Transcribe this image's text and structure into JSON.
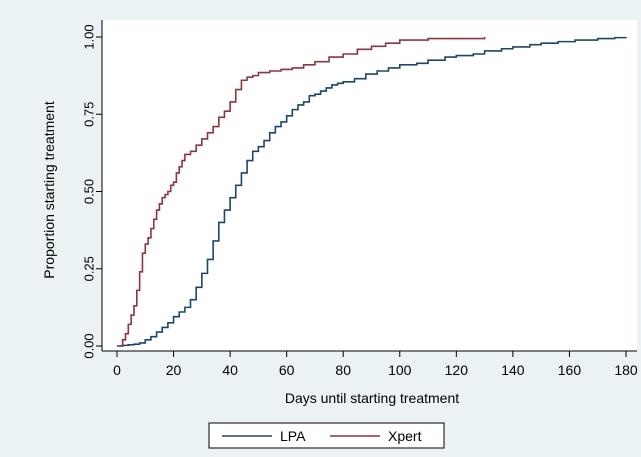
{
  "chart_data": {
    "type": "line",
    "title": "",
    "xlabel": "Days until starting treatment",
    "ylabel": "Proportion starting treatment",
    "xlim": [
      0,
      180
    ],
    "ylim": [
      0,
      1
    ],
    "x_ticks": [
      "0",
      "20",
      "40",
      "60",
      "80",
      "100",
      "120",
      "140",
      "160",
      "180"
    ],
    "y_ticks": [
      "0.00",
      "0.25",
      "0.50",
      "0.75",
      "1.00"
    ],
    "grid": false,
    "legend_position": "bottom",
    "series": [
      {
        "name": "LPA",
        "color": "#1a476f",
        "step": true,
        "points": [
          [
            0,
            0
          ],
          [
            2,
            0.002
          ],
          [
            4,
            0.004
          ],
          [
            6,
            0.006
          ],
          [
            8,
            0.01
          ],
          [
            10,
            0.02
          ],
          [
            12,
            0.03
          ],
          [
            14,
            0.045
          ],
          [
            16,
            0.06
          ],
          [
            18,
            0.075
          ],
          [
            20,
            0.095
          ],
          [
            22,
            0.11
          ],
          [
            24,
            0.125
          ],
          [
            26,
            0.15
          ],
          [
            28,
            0.19
          ],
          [
            30,
            0.235
          ],
          [
            32,
            0.28
          ],
          [
            34,
            0.34
          ],
          [
            36,
            0.4
          ],
          [
            38,
            0.44
          ],
          [
            40,
            0.48
          ],
          [
            42,
            0.52
          ],
          [
            44,
            0.56
          ],
          [
            46,
            0.6
          ],
          [
            48,
            0.63
          ],
          [
            50,
            0.645
          ],
          [
            52,
            0.665
          ],
          [
            54,
            0.69
          ],
          [
            56,
            0.71
          ],
          [
            58,
            0.725
          ],
          [
            60,
            0.745
          ],
          [
            62,
            0.765
          ],
          [
            64,
            0.78
          ],
          [
            66,
            0.79
          ],
          [
            68,
            0.81
          ],
          [
            70,
            0.815
          ],
          [
            72,
            0.825
          ],
          [
            74,
            0.835
          ],
          [
            76,
            0.845
          ],
          [
            78,
            0.85
          ],
          [
            80,
            0.855
          ],
          [
            84,
            0.865
          ],
          [
            88,
            0.88
          ],
          [
            92,
            0.89
          ],
          [
            96,
            0.9
          ],
          [
            100,
            0.91
          ],
          [
            106,
            0.915
          ],
          [
            110,
            0.925
          ],
          [
            116,
            0.935
          ],
          [
            120,
            0.94
          ],
          [
            126,
            0.945
          ],
          [
            130,
            0.955
          ],
          [
            136,
            0.962
          ],
          [
            140,
            0.968
          ],
          [
            146,
            0.975
          ],
          [
            150,
            0.98
          ],
          [
            156,
            0.985
          ],
          [
            162,
            0.99
          ],
          [
            170,
            0.995
          ],
          [
            176,
            0.998
          ],
          [
            180,
            1.0
          ]
        ]
      },
      {
        "name": "Xpert",
        "color": "#90353b",
        "step": true,
        "points": [
          [
            1,
            0
          ],
          [
            2,
            0.02
          ],
          [
            3,
            0.04
          ],
          [
            4,
            0.07
          ],
          [
            5,
            0.1
          ],
          [
            6,
            0.13
          ],
          [
            7,
            0.18
          ],
          [
            8,
            0.24
          ],
          [
            9,
            0.3
          ],
          [
            10,
            0.33
          ],
          [
            11,
            0.35
          ],
          [
            12,
            0.38
          ],
          [
            13,
            0.41
          ],
          [
            14,
            0.44
          ],
          [
            15,
            0.46
          ],
          [
            16,
            0.48
          ],
          [
            17,
            0.49
          ],
          [
            18,
            0.5
          ],
          [
            19,
            0.52
          ],
          [
            20,
            0.53
          ],
          [
            21,
            0.56
          ],
          [
            22,
            0.58
          ],
          [
            23,
            0.6
          ],
          [
            24,
            0.62
          ],
          [
            26,
            0.63
          ],
          [
            28,
            0.65
          ],
          [
            30,
            0.67
          ],
          [
            32,
            0.69
          ],
          [
            34,
            0.71
          ],
          [
            36,
            0.74
          ],
          [
            38,
            0.76
          ],
          [
            40,
            0.79
          ],
          [
            42,
            0.83
          ],
          [
            44,
            0.86
          ],
          [
            46,
            0.87
          ],
          [
            48,
            0.875
          ],
          [
            50,
            0.885
          ],
          [
            54,
            0.89
          ],
          [
            58,
            0.895
          ],
          [
            62,
            0.9
          ],
          [
            66,
            0.91
          ],
          [
            70,
            0.92
          ],
          [
            75,
            0.935
          ],
          [
            80,
            0.945
          ],
          [
            85,
            0.96
          ],
          [
            90,
            0.97
          ],
          [
            95,
            0.98
          ],
          [
            100,
            0.99
          ],
          [
            110,
            0.995
          ],
          [
            130,
            1.0
          ]
        ]
      }
    ]
  }
}
